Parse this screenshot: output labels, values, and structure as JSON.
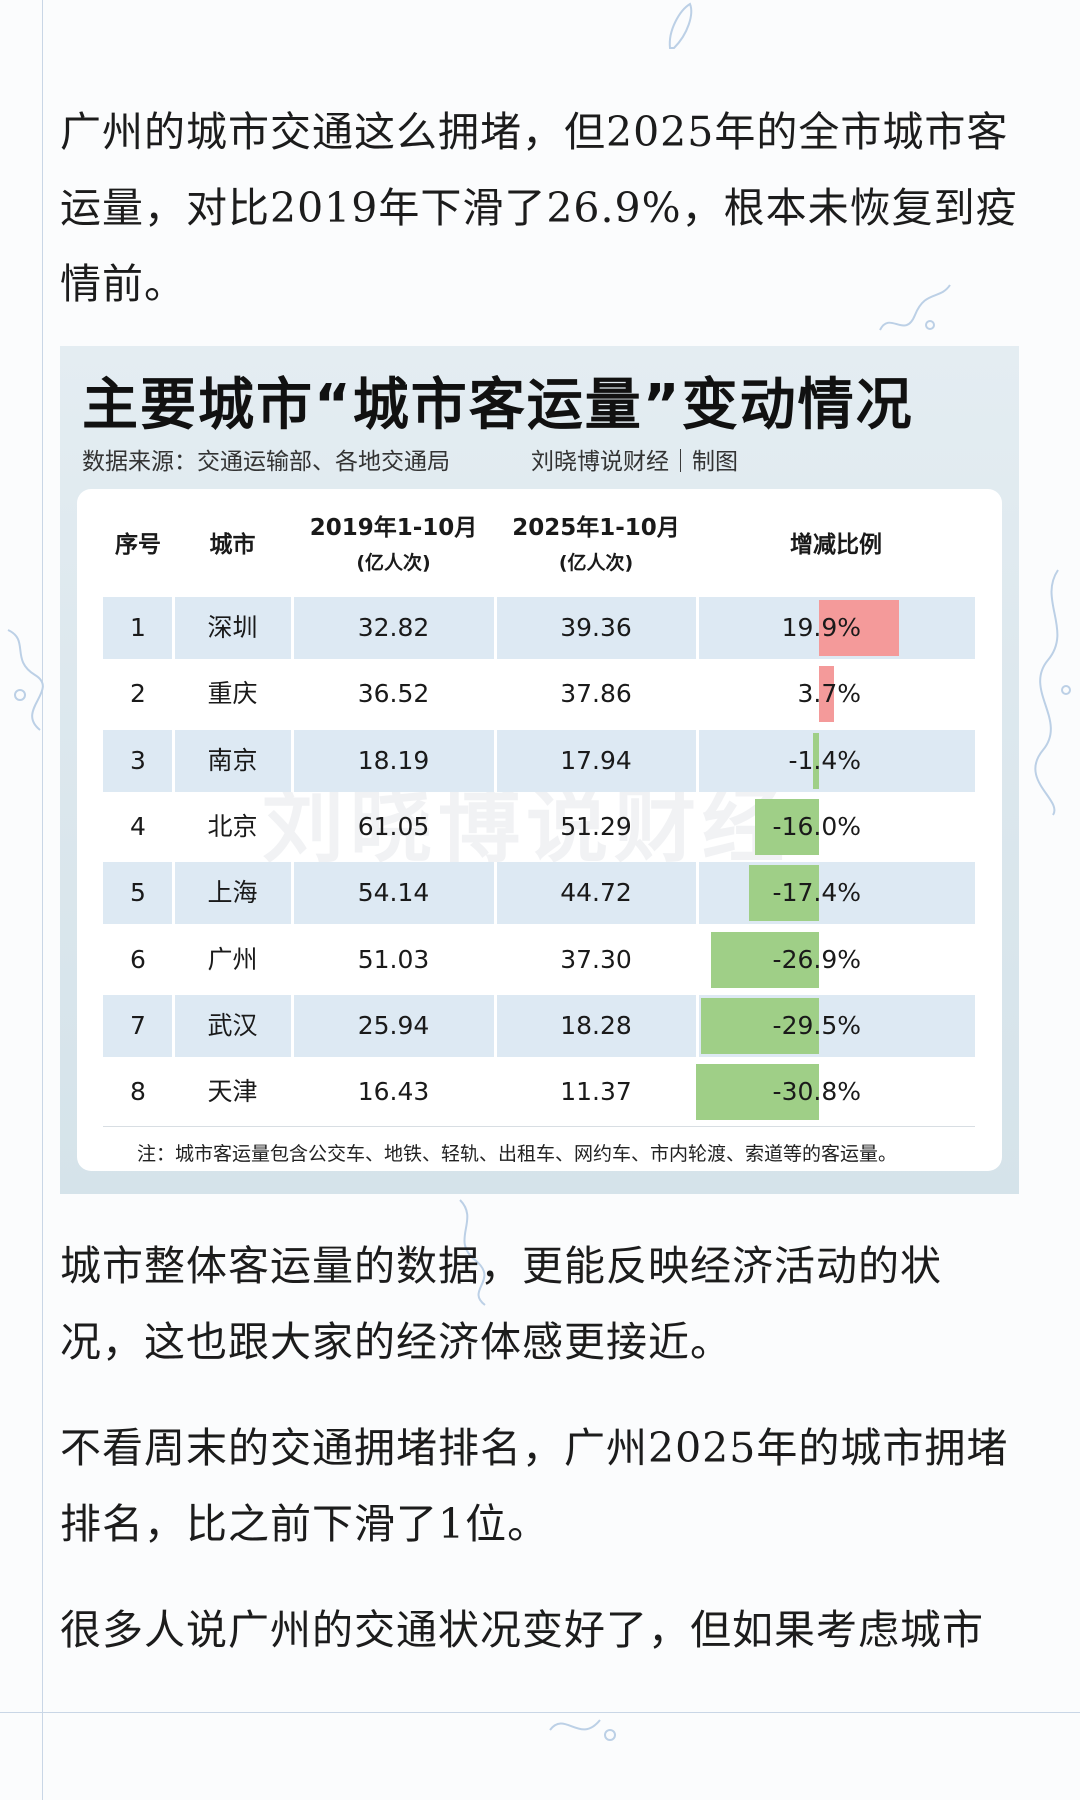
{
  "article": {
    "paragraph_1": "广州的城市交通这么拥堵，但2025年的全市城市客运量，对比2019年下滑了26.9%，根本未恢复到疫情前。",
    "paragraph_2": "城市整体客运量的数据，更能反映经济活动的状况，这也跟大家的经济体感更接近。",
    "paragraph_3": "不看周末的交通拥堵排名，广州2025年的城市拥堵排名，比之前下滑了1位。",
    "paragraph_4": "很多人说广州的交通状况变好了，但如果考虑城市"
  },
  "infographic": {
    "title": "主要城市“城市客运量”变动情况",
    "source": "数据来源：交通运输部、各地交通局",
    "credit": "刘晓博说财经｜制图",
    "watermark": "刘晓博说财经",
    "note": "注：城市客运量包含公交车、地铁、轻轨、出租车、网约车、市内轮渡、索道等的客运量。",
    "colors": {
      "increase": "#f49a9a",
      "decrease": "#9fcf87",
      "row_shade": "#dde9f3"
    }
  },
  "chart_data": {
    "type": "table",
    "columns": [
      {
        "key": "idx",
        "label": "序号",
        "unit": ""
      },
      {
        "key": "city",
        "label": "城市",
        "unit": ""
      },
      {
        "key": "y2019",
        "label": "2019年1-10月",
        "unit": "(亿人次)"
      },
      {
        "key": "y2025",
        "label": "2025年1-10月",
        "unit": "(亿人次)"
      },
      {
        "key": "pct",
        "label": "增减比例",
        "unit": ""
      }
    ],
    "rows": [
      {
        "idx": "1",
        "city": "深圳",
        "y2019": "32.82",
        "y2025": "39.36",
        "pct": "19.9%",
        "change": 19.9
      },
      {
        "idx": "2",
        "city": "重庆",
        "y2019": "36.52",
        "y2025": "37.86",
        "pct": "3.7%",
        "change": 3.7
      },
      {
        "idx": "3",
        "city": "南京",
        "y2019": "18.19",
        "y2025": "17.94",
        "pct": "-1.4%",
        "change": -1.4
      },
      {
        "idx": "4",
        "city": "北京",
        "y2019": "61.05",
        "y2025": "51.29",
        "pct": "-16.0%",
        "change": -16.0
      },
      {
        "idx": "5",
        "city": "上海",
        "y2019": "54.14",
        "y2025": "44.72",
        "pct": "-17.4%",
        "change": -17.4
      },
      {
        "idx": "6",
        "city": "广州",
        "y2019": "51.03",
        "y2025": "37.30",
        "pct": "-26.9%",
        "change": -26.9
      },
      {
        "idx": "7",
        "city": "武汉",
        "y2019": "25.94",
        "y2025": "18.28",
        "pct": "-29.5%",
        "change": -29.5
      },
      {
        "idx": "8",
        "city": "天津",
        "y2019": "16.43",
        "y2025": "11.37",
        "pct": "-30.8%",
        "change": -30.8
      }
    ]
  }
}
